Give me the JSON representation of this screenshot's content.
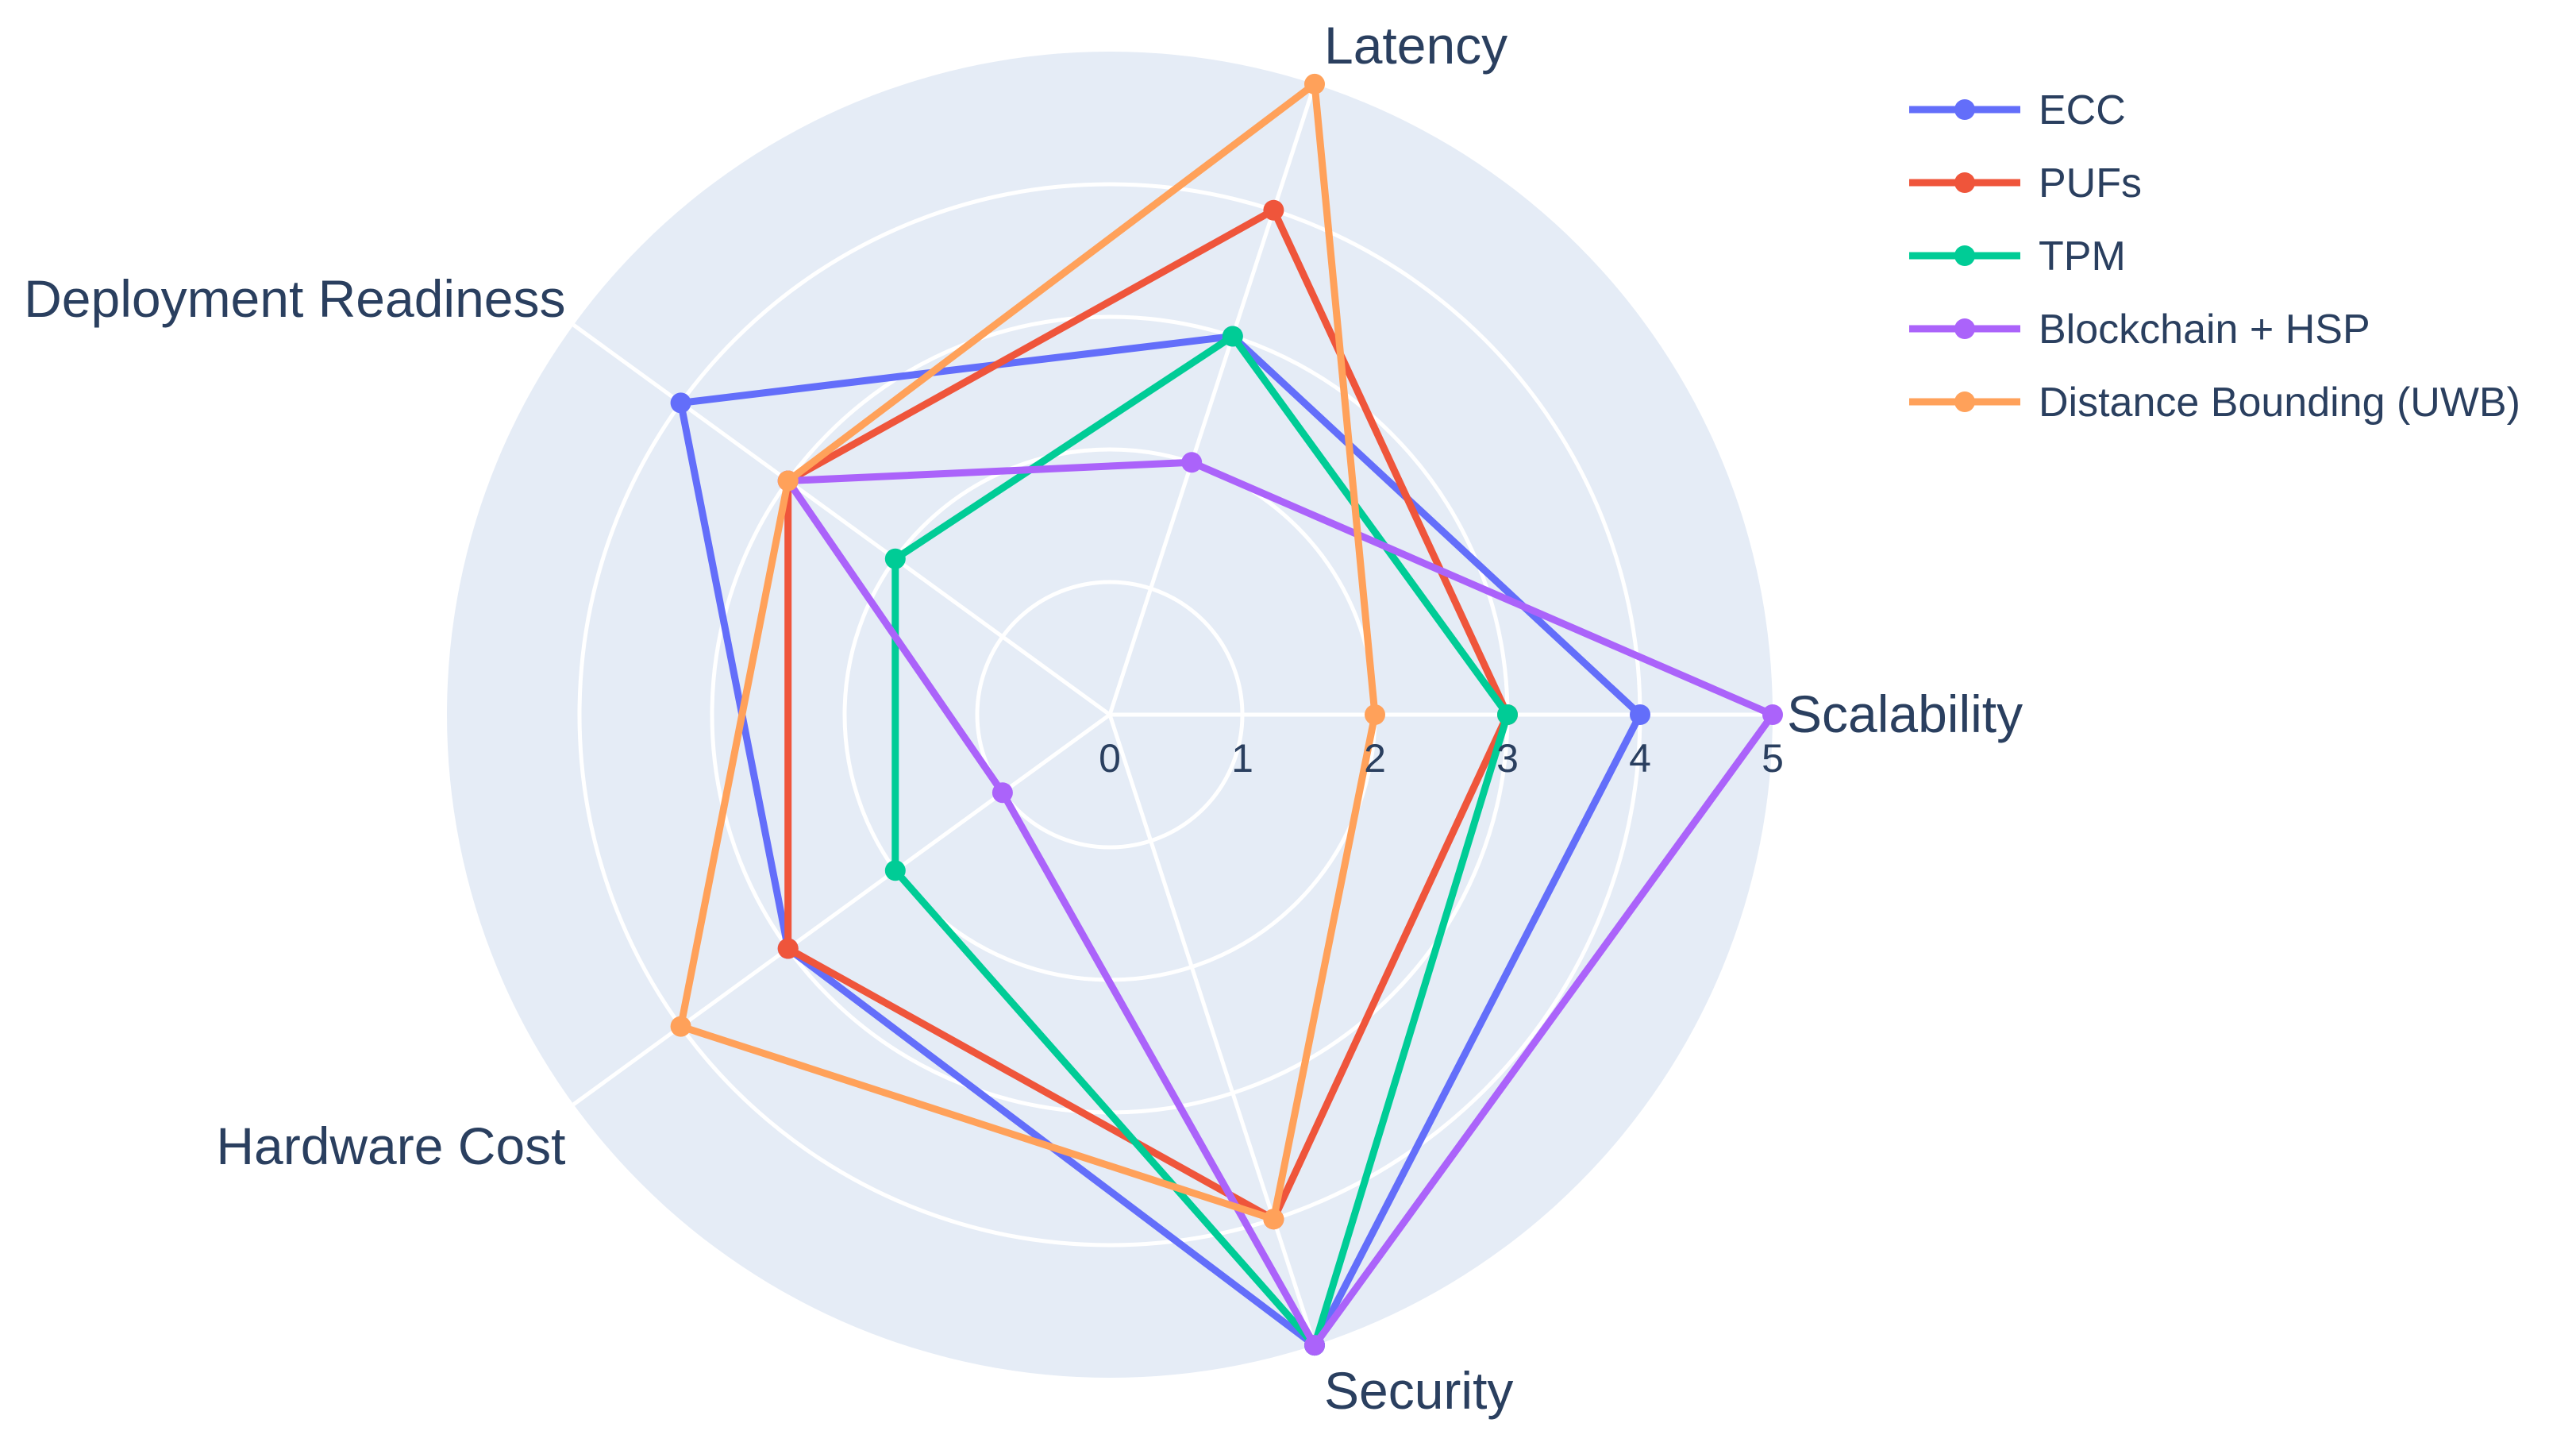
{
  "chart_data": {
    "type": "radar",
    "title": "",
    "axes": [
      "Scalability",
      "Latency",
      "Deployment Readiness",
      "Hardware Cost",
      "Security"
    ],
    "radial_range": [
      0,
      5
    ],
    "radial_ticks": [
      "0",
      "1",
      "2",
      "3",
      "4",
      "5"
    ],
    "grid": true,
    "background_color": "#e5ecf6",
    "legend_position": "top-right",
    "series": [
      {
        "name": "ECC",
        "color": "#636efa",
        "values": [
          4,
          3,
          4,
          3,
          5
        ]
      },
      {
        "name": "PUFs",
        "color": "#ef553b",
        "values": [
          3,
          4,
          3,
          3,
          4
        ]
      },
      {
        "name": "TPM",
        "color": "#00cc96",
        "values": [
          3,
          3,
          2,
          2,
          5
        ]
      },
      {
        "name": "Blockchain + HSP",
        "color": "#ab63fa",
        "values": [
          5,
          2,
          3,
          1,
          5
        ]
      },
      {
        "name": "Distance Bounding (UWB)",
        "color": "#ffa15a",
        "values": [
          2,
          5,
          3,
          4,
          4
        ]
      }
    ]
  }
}
